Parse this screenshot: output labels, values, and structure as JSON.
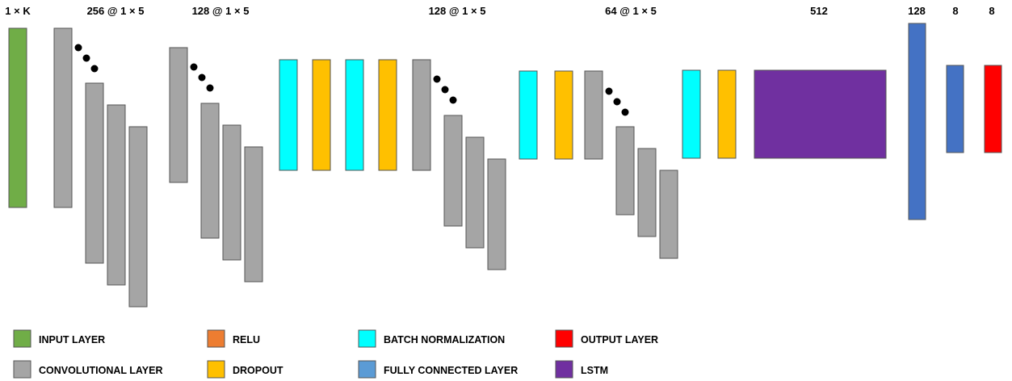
{
  "title_labels": {
    "input": "1 × K",
    "conv1": "256 @ 1 × 5",
    "conv2": "128 @ 1 × 5",
    "conv3": "128 @ 1 × 5",
    "conv4": "64 @ 1 × 5",
    "lstm": "512",
    "fc1": "128",
    "fc2": "8",
    "output": "8"
  },
  "colors": {
    "input": "#70AD47",
    "conv": "#A5A5A5",
    "relu": "#ED7D31",
    "batchnorm": "#00FFFF",
    "dropout": "#FFC000",
    "fc": "#4472C4",
    "fc_legend": "#5B9BD5",
    "output": "#FF0000",
    "lstm": "#7030A0",
    "dots": "#000000"
  },
  "legend": [
    {
      "key": "input",
      "label": "INPUT LAYER"
    },
    {
      "key": "conv",
      "label": "CONVOLUTIONAL LAYER"
    },
    {
      "key": "relu",
      "label": "RELU"
    },
    {
      "key": "dropout",
      "label": "DROPOUT"
    },
    {
      "key": "batchnorm",
      "label": "BATCH NORMALIZATION"
    },
    {
      "key": "fc_legend",
      "label": "FULLY CONNECTED LAYER"
    },
    {
      "key": "output",
      "label": "OUTPUT LAYER"
    },
    {
      "key": "lstm",
      "label": "LSTM"
    }
  ]
}
